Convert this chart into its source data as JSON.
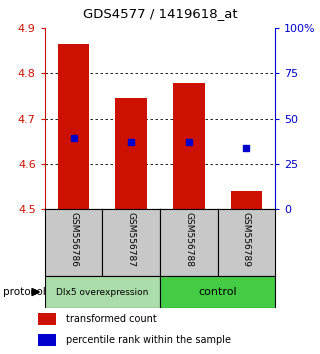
{
  "title": "GDS4577 / 1419618_at",
  "samples": [
    "GSM556786",
    "GSM556787",
    "GSM556788",
    "GSM556789"
  ],
  "bar_values": [
    4.865,
    4.745,
    4.778,
    4.54
  ],
  "bar_base": 4.5,
  "percentile_values": [
    4.658,
    4.648,
    4.648,
    4.635
  ],
  "ylim_left": [
    4.5,
    4.9
  ],
  "ylim_right": [
    0,
    100
  ],
  "yticks_left": [
    4.5,
    4.6,
    4.7,
    4.8,
    4.9
  ],
  "yticks_right": [
    0,
    25,
    50,
    75,
    100
  ],
  "ytick_labels_right": [
    "0",
    "25",
    "50",
    "75",
    "100%"
  ],
  "bar_color": "#cc1100",
  "percentile_color": "#0000cc",
  "groups": [
    {
      "label": "Dlx5 overexpression",
      "color": "#aaddaa"
    },
    {
      "label": "control",
      "color": "#44cc44"
    }
  ],
  "protocol_label": "protocol",
  "background_color": "#ffffff",
  "sample_box_color": "#c8c8c8",
  "legend_red_label": "transformed count",
  "legend_blue_label": "percentile rank within the sample"
}
